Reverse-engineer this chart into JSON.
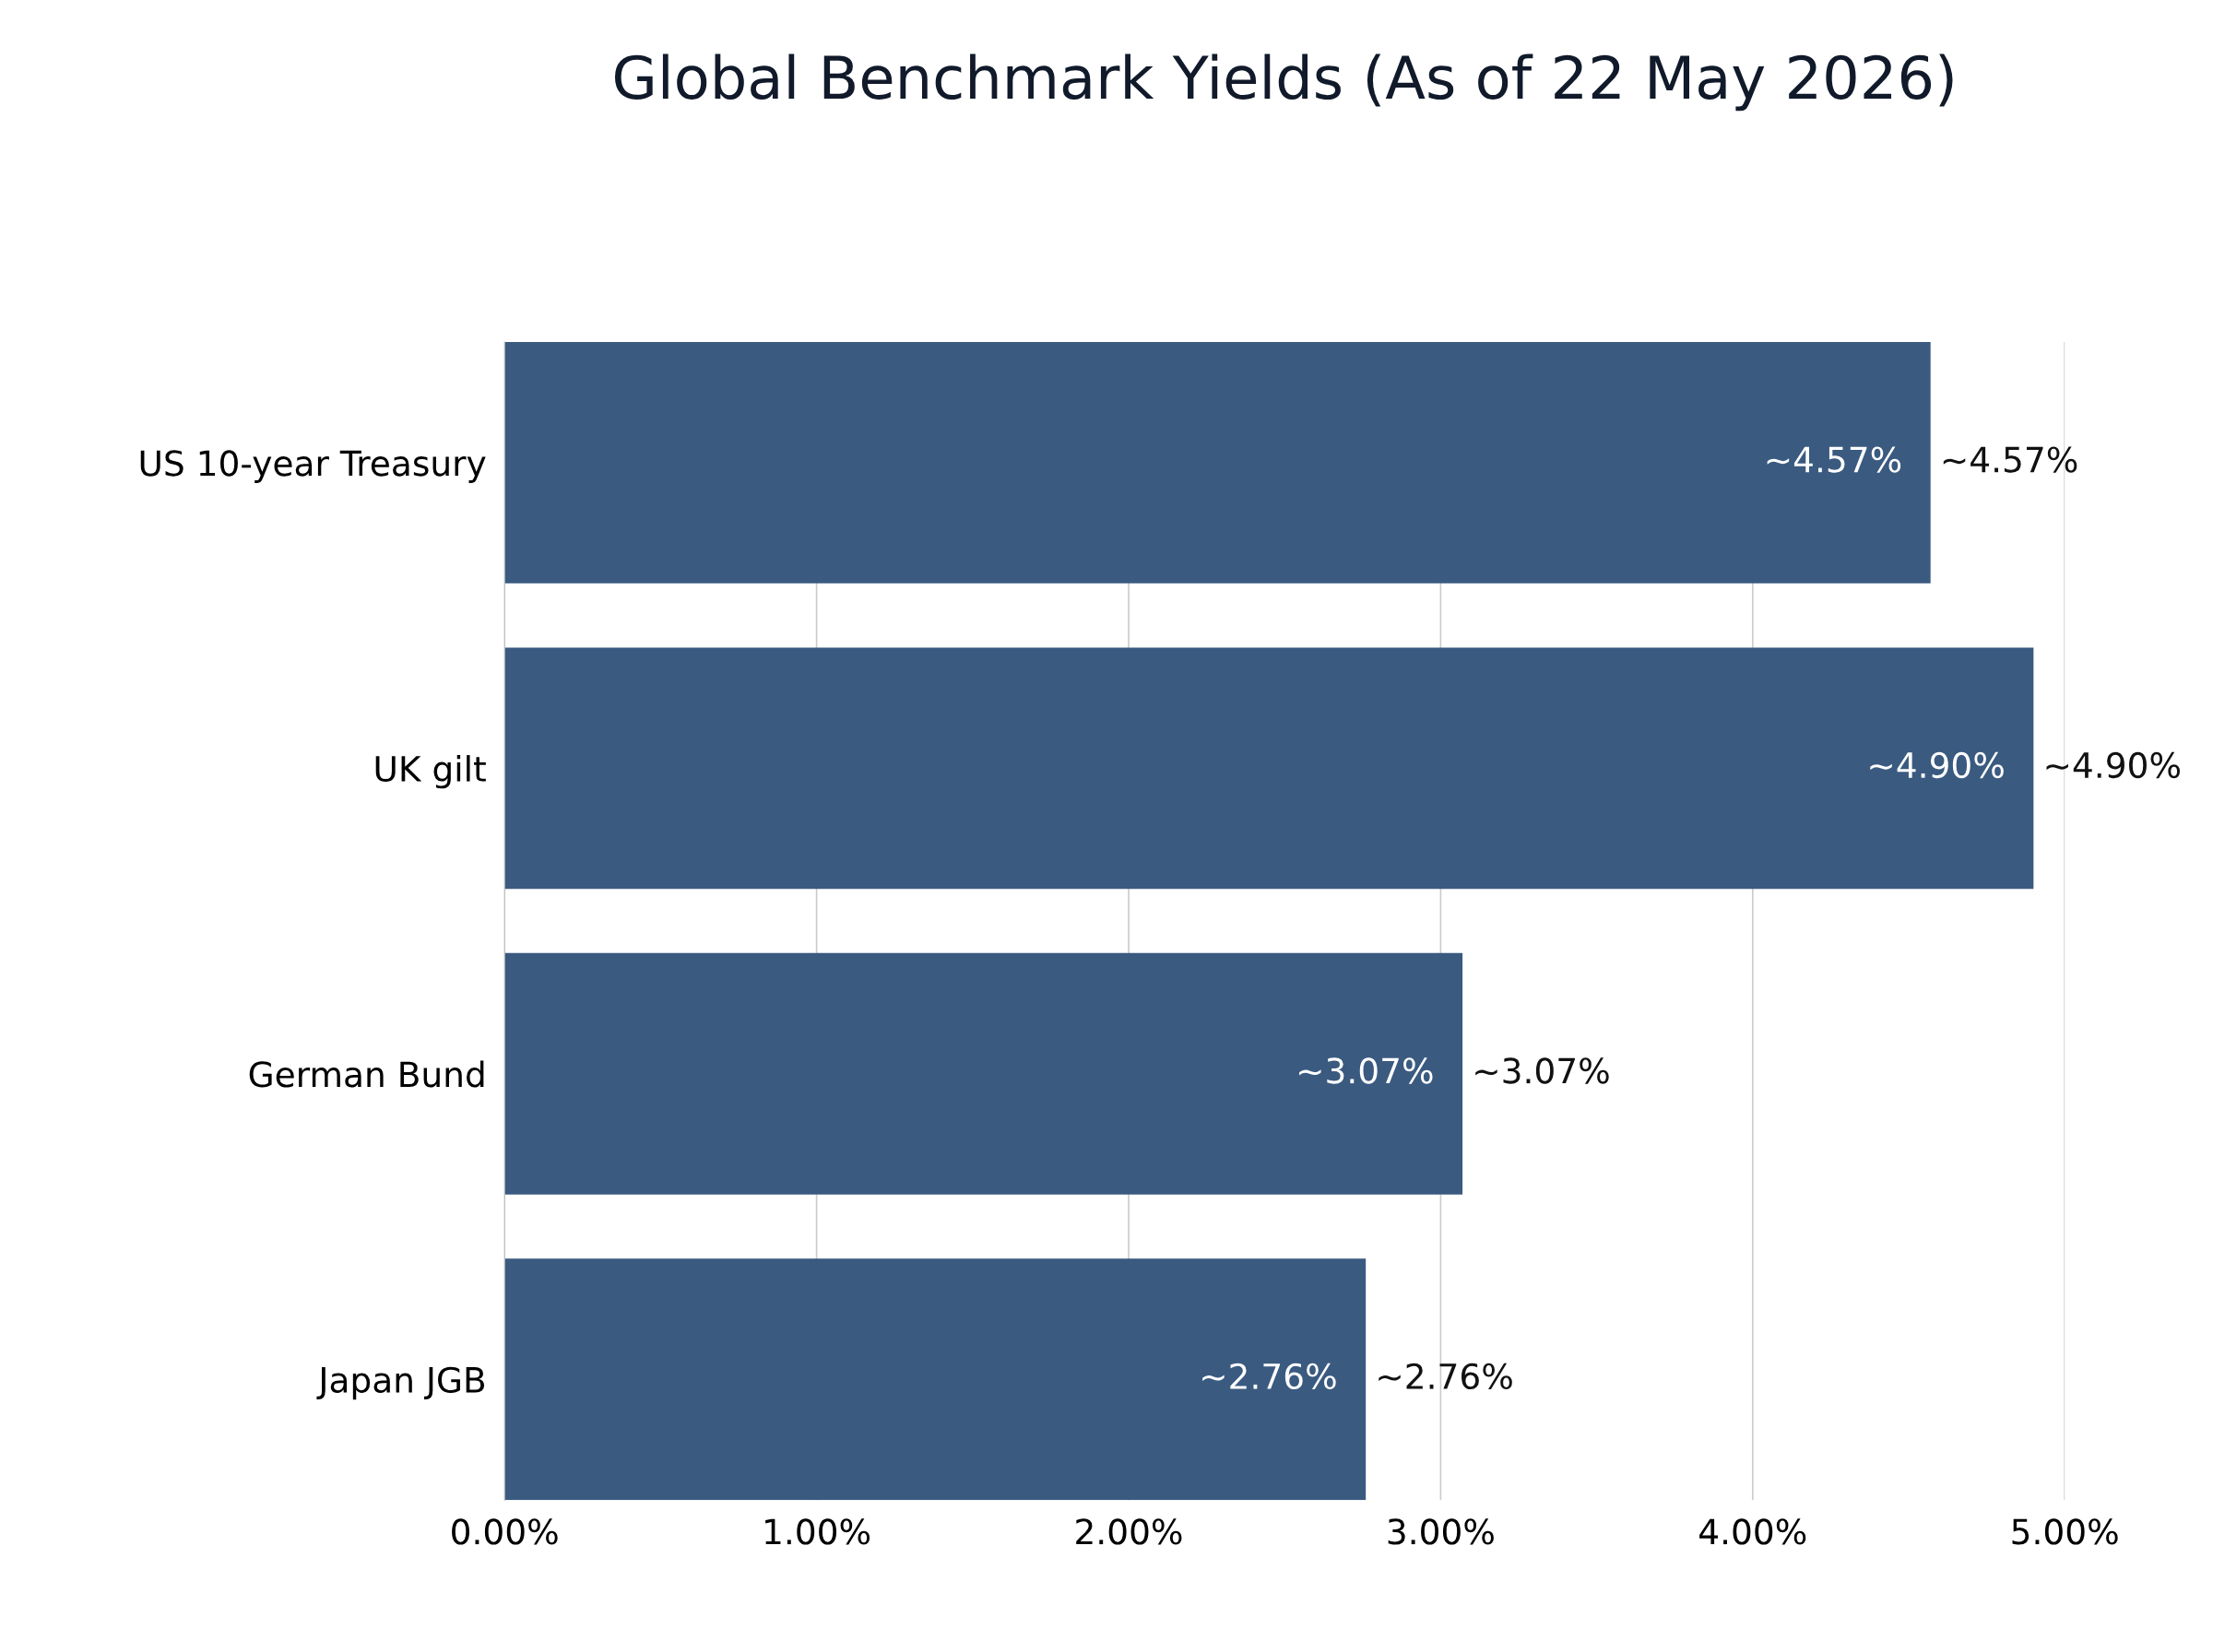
{
  "chart_data": {
    "type": "bar",
    "orientation": "horizontal",
    "title": "Global Benchmark Yields (As of 22 May 2026)",
    "categories": [
      "US 10-year Treasury",
      "UK gilt",
      "German Bund",
      "Japan JGB"
    ],
    "values": [
      4.57,
      4.9,
      3.07,
      2.76
    ],
    "value_labels": [
      "~4.57%",
      "~4.90%",
      "~3.07%",
      "~2.76%"
    ],
    "color": "#3a5a80",
    "xlim": [
      0,
      5
    ],
    "xticks": [
      {
        "value": 0,
        "label": "0.00%"
      },
      {
        "value": 1,
        "label": "1.00%"
      },
      {
        "value": 2,
        "label": "2.00%"
      },
      {
        "value": 3,
        "label": "3.00%"
      },
      {
        "value": 4,
        "label": "4.00%"
      },
      {
        "value": 5,
        "label": "5.00%"
      }
    ],
    "grid": "x"
  }
}
